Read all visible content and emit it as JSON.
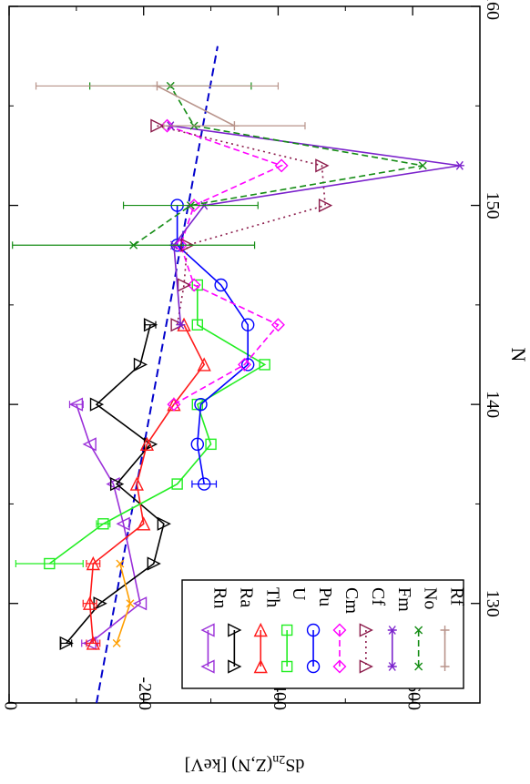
{
  "chart_data": {
    "type": "line",
    "orientation": "rotated-90-clockwise",
    "xlabel": "N",
    "ylabel": "dS2n(Z,N)  [keV]",
    "ylabel_parts": {
      "prefix": "dS",
      "sub": "2n",
      "suffix": "(Z,N)  [keV]"
    },
    "xlim": [
      125,
      160
    ],
    "ylim": [
      0,
      -700
    ],
    "x_ticks": [
      130,
      140,
      150,
      160
    ],
    "y_ticks": [
      0,
      -200,
      -400,
      -600
    ],
    "x_tick_labels": [
      "130",
      "140",
      "150",
      "160"
    ],
    "y_tick_labels": [
      "0",
      "-200",
      "-400",
      "-600"
    ],
    "legend_position": "bottom-left (in rotated view)",
    "series": [
      {
        "name": "Rn",
        "color": "#9b30d9",
        "marker": "tri-down",
        "dash": "solid",
        "x": [
          128,
          130,
          134,
          136,
          138,
          140
        ],
        "y": [
          -120,
          -195,
          -170,
          -155,
          -120,
          -100
        ],
        "err": [
          12,
          0,
          0,
          0,
          0,
          10
        ]
      },
      {
        "name": "Ra",
        "color": "#000000",
        "marker": "tri-up",
        "dash": "solid",
        "x": [
          128,
          130,
          132,
          134,
          136,
          138,
          140,
          142,
          144
        ],
        "y": [
          -85,
          -135,
          -215,
          -230,
          -160,
          -210,
          -130,
          -195,
          -210
        ],
        "err": [
          8,
          0,
          0,
          0,
          0,
          0,
          0,
          0,
          8
        ]
      },
      {
        "name": "Th",
        "color": "#ff1a1a",
        "marker": "tri-right",
        "dash": "solid",
        "x": [
          128,
          130,
          132,
          134,
          136,
          138,
          140,
          142,
          144
        ],
        "y": [
          -125,
          -120,
          -125,
          -200,
          -190,
          -205,
          -245,
          -290,
          -260
        ],
        "err": [
          10,
          10,
          10,
          0,
          0,
          0,
          0,
          0,
          0
        ]
      },
      {
        "name": "U",
        "color": "#22ee22",
        "marker": "square",
        "dash": "solid",
        "x": [
          132,
          134,
          136,
          138,
          140,
          142,
          144,
          146
        ],
        "y": [
          -60,
          -140,
          -250,
          -300,
          -280,
          -380,
          -280,
          -280
        ],
        "err": [
          50,
          10,
          0,
          0,
          0,
          0,
          0,
          0
        ]
      },
      {
        "name": "Pu",
        "color": "#0000ff",
        "marker": "circle",
        "dash": "solid",
        "x": [
          136,
          138,
          140,
          142,
          144,
          146,
          148,
          150
        ],
        "y": [
          -290,
          -280,
          -285,
          -355,
          -355,
          -315,
          -250,
          -250
        ],
        "err": [
          18,
          0,
          0,
          0,
          0,
          0,
          0,
          0
        ]
      },
      {
        "name": "Cm",
        "color": "#ff00ff",
        "marker": "diamond",
        "dash": "dashed",
        "x": [
          140,
          142,
          144,
          146,
          148,
          150,
          152,
          154
        ],
        "y": [
          -245,
          -350,
          -400,
          -275,
          -255,
          -275,
          -405,
          -235
        ],
        "err": [
          0,
          0,
          0,
          0,
          0,
          0,
          0,
          0
        ]
      },
      {
        "name": "Cf",
        "color": "#8b1a4a",
        "marker": "tri-up",
        "dash": "dotted",
        "x": [
          144,
          146,
          148,
          150,
          152,
          154
        ],
        "y": [
          -250,
          -260,
          -265,
          -470,
          -465,
          -220
        ],
        "err": [
          0,
          0,
          0,
          0,
          0,
          0
        ]
      },
      {
        "name": "Fm",
        "color": "#7b22cc",
        "marker": "asterisk",
        "dash": "solid",
        "x": [
          144,
          148,
          150,
          152,
          154
        ],
        "y": [
          -255,
          -245,
          -290,
          -670,
          -240
        ],
        "err": [
          0,
          0,
          0,
          0,
          0
        ]
      },
      {
        "name": "No",
        "color": "#148c14",
        "marker": "x",
        "dash": "dashed",
        "x": [
          148,
          150,
          152,
          154,
          156
        ],
        "y": [
          -185,
          -270,
          -615,
          -275,
          -240
        ],
        "err": [
          180,
          100,
          0,
          0,
          120
        ]
      },
      {
        "name": "Rf",
        "color": "#b8938a",
        "marker": "plus",
        "dash": "solid",
        "x": [
          154,
          156
        ],
        "y": [
          -335,
          -220
        ],
        "err": [
          105,
          180
        ]
      },
      {
        "name": "",
        "color": "#ff9f00",
        "marker": "x",
        "dash": "solid",
        "x": [
          128,
          130,
          132
        ],
        "y": [
          -160,
          -180,
          -165
        ],
        "err": [
          0,
          0,
          0
        ]
      }
    ],
    "trend_line": {
      "color": "#0000cc",
      "dash": "dashed",
      "x": [
        125,
        158
      ],
      "y": [
        -130,
        -310
      ]
    }
  }
}
